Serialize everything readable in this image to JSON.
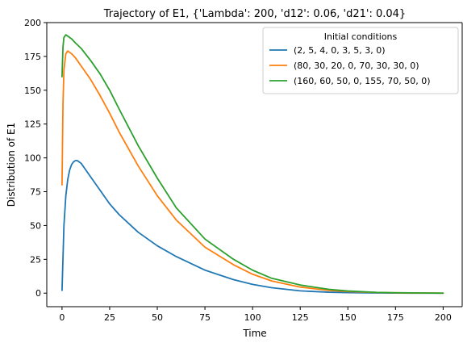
{
  "chart_data": {
    "type": "line",
    "title": "Trajectory of E1, {'Lambda': 200, 'd12': 0.06, 'd21': 0.04}",
    "xlabel": "Time",
    "ylabel": "Distribution of E1",
    "xlim": [
      -8,
      210
    ],
    "ylim": [
      -10,
      200
    ],
    "xticks": [
      0,
      25,
      50,
      75,
      100,
      125,
      150,
      175,
      200
    ],
    "yticks": [
      0,
      25,
      50,
      75,
      100,
      125,
      150,
      175,
      200
    ],
    "grid": false,
    "legend": {
      "title": "Initial conditions",
      "position": "top-right"
    },
    "series": [
      {
        "name": "(2, 5, 4, 0, 3, 5, 3, 0)",
        "color": "#1f77b4",
        "x": [
          0,
          1,
          2,
          3,
          4,
          5,
          6,
          7,
          8,
          10,
          12,
          15,
          20,
          25,
          30,
          40,
          50,
          60,
          75,
          90,
          100,
          110,
          125,
          140,
          150,
          165,
          175,
          200
        ],
        "y": [
          2,
          50,
          72,
          84,
          91,
          95,
          97,
          98,
          98,
          96,
          92,
          86,
          76,
          66,
          58,
          45,
          35,
          27,
          17,
          10,
          6.5,
          4,
          1.7,
          0.7,
          0.4,
          0.15,
          0.05,
          0
        ]
      },
      {
        "name": "(80, 30, 20, 0, 70, 30, 30, 0)",
        "color": "#ff7f0e",
        "x": [
          0,
          0.5,
          1,
          2,
          3,
          4,
          5,
          7,
          10,
          15,
          20,
          25,
          30,
          40,
          50,
          60,
          75,
          90,
          100,
          110,
          125,
          140,
          150,
          165,
          175,
          200
        ],
        "y": [
          80,
          140,
          165,
          177,
          179,
          178,
          177,
          174,
          168,
          158,
          146,
          133,
          119,
          94,
          72,
          54,
          34,
          21,
          14,
          9,
          4.5,
          2,
          1.2,
          0.5,
          0.25,
          0
        ]
      },
      {
        "name": "(160, 60, 50, 0, 155, 70, 50, 0)",
        "color": "#2ca02c",
        "x": [
          0,
          0.5,
          1,
          2,
          3,
          5,
          7,
          10,
          15,
          20,
          25,
          30,
          40,
          50,
          60,
          75,
          90,
          100,
          110,
          125,
          140,
          150,
          165,
          175,
          200
        ],
        "y": [
          160,
          182,
          189,
          191,
          190,
          188,
          185,
          181,
          172,
          162,
          150,
          136,
          109,
          85,
          63,
          40,
          25,
          17,
          11,
          6,
          2.8,
          1.6,
          0.6,
          0.3,
          0
        ]
      }
    ]
  }
}
